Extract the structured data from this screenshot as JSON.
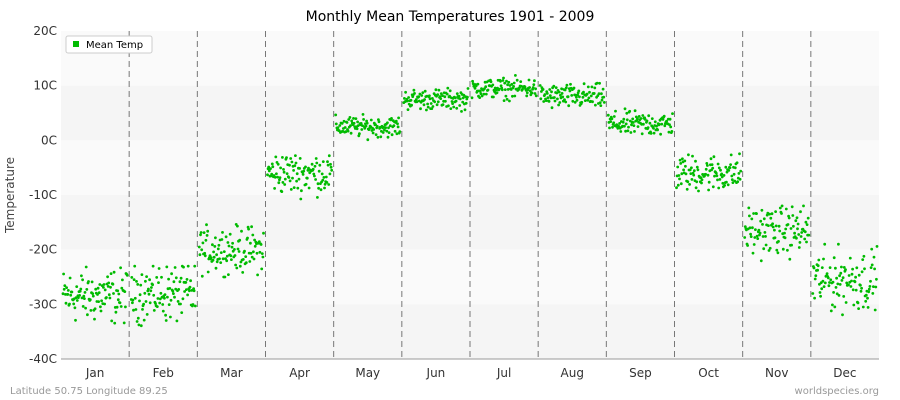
{
  "colors": {
    "series": "#00bb00",
    "band_light": "#f5f5f5",
    "band_white": "#fafafa",
    "vline": "#777777",
    "axis": "#999999"
  },
  "chart_data": {
    "type": "scatter",
    "title": "Monthly Mean Temperatures 1901 - 2009",
    "ylabel": "Temperature",
    "xlabel": "",
    "ylim": [
      -40,
      20
    ],
    "yticks": [
      {
        "value": 20,
        "label": "20C"
      },
      {
        "value": 10,
        "label": "10C"
      },
      {
        "value": 0,
        "label": "0C"
      },
      {
        "value": -10,
        "label": "-10C"
      },
      {
        "value": -20,
        "label": "-20C"
      },
      {
        "value": -30,
        "label": "-30C"
      },
      {
        "value": -40,
        "label": "-40C"
      }
    ],
    "categories": [
      "Jan",
      "Feb",
      "Mar",
      "Apr",
      "May",
      "Jun",
      "Jul",
      "Aug",
      "Sep",
      "Oct",
      "Nov",
      "Dec"
    ],
    "years": [
      1901,
      2009
    ],
    "series": [
      {
        "name": "Mean Temp",
        "month_ranges": [
          [
            -35,
            -22
          ],
          [
            -37,
            -23
          ],
          [
            -25,
            -14
          ],
          [
            -12,
            -2
          ],
          [
            0,
            5
          ],
          [
            5,
            10
          ],
          [
            7,
            12
          ],
          [
            5,
            11
          ],
          [
            0,
            6
          ],
          [
            -10,
            -1
          ],
          [
            -24,
            -12
          ],
          [
            -34,
            -19
          ]
        ],
        "month_means": [
          -28.5,
          -28,
          -20,
          -6,
          2.5,
          7.5,
          9.5,
          8,
          3,
          -6,
          -16.5,
          -25.5
        ]
      }
    ],
    "legend": {
      "position": "top-left",
      "label": "Mean Temp"
    }
  },
  "footer": {
    "left": "Latitude 50.75 Longitude 89.25",
    "right": "worldspecies.org"
  }
}
